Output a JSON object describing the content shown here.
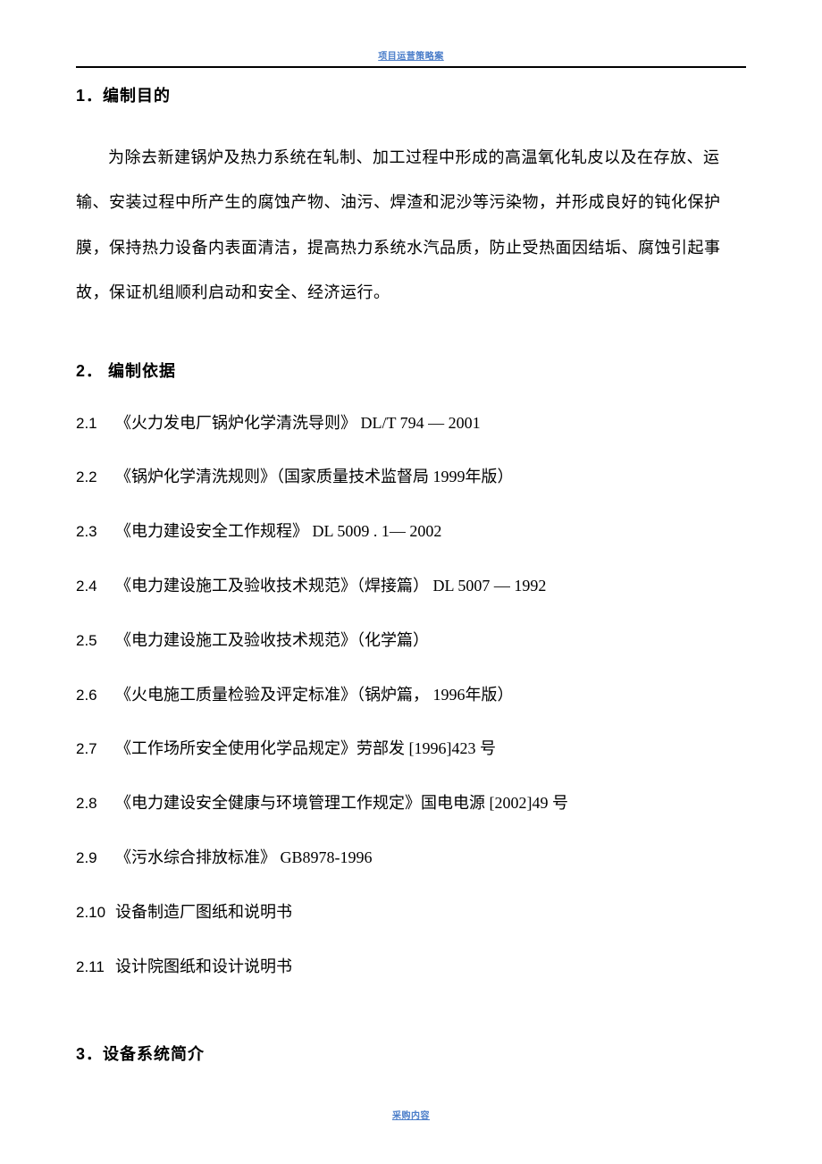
{
  "header": {
    "watermark_top": "项目运营策略案",
    "watermark_bottom": "采购内容"
  },
  "section1": {
    "heading": "1．编制目的",
    "paragraph": "为除去新建锅炉及热力系统在轧制、加工过程中形成的高温氧化轧皮以及在存放、运输、安装过程中所产生的腐蚀产物、油污、焊渣和泥沙等污染物，并形成良好的钝化保护膜，保持热力设备内表面清洁，提高热力系统水汽品质，防止受热面因结垢、腐蚀引起事故，保证机组顺利启动和安全、经济运行。"
  },
  "section2": {
    "heading": "2． 编制依据",
    "items": [
      {
        "num": "2.1",
        "text": "《火力发电厂锅炉化学清洗导则》 DL/T  794 — 2001"
      },
      {
        "num": "2.2",
        "text": "《锅炉化学清洗规则》（国家质量技术监督局  1999年版）"
      },
      {
        "num": "2.3",
        "text": "《电力建设安全工作规程》 DL  5009 . 1— 2002"
      },
      {
        "num": "2.4",
        "text": "《电力建设施工及验收技术规范》（焊接篇）  DL  5007 — 1992"
      },
      {
        "num": "2.5",
        "text": "《电力建设施工及验收技术规范》（化学篇）"
      },
      {
        "num": "2.6",
        "text": "《火电施工质量检验及评定标准》（锅炉篇，  1996年版）"
      },
      {
        "num": "2.7",
        "text": "《工作场所安全使用化学品规定》劳部发 [1996]423 号"
      },
      {
        "num": "2.8",
        "text": "《电力建设安全健康与环境管理工作规定》国电电源 [2002]49 号"
      },
      {
        "num": "2.9",
        "text": "《污水综合排放标准》 GB8978-1996"
      },
      {
        "num": "2.10",
        "text": "设备制造厂图纸和说明书"
      },
      {
        "num": "2.11",
        "text": "设计院图纸和设计说明书"
      }
    ]
  },
  "section3": {
    "heading": "3．设备系统简介"
  },
  "style": {
    "page_bg": "#ffffff",
    "text_color": "#000000",
    "watermark_color": "#4a7dc9",
    "rule_color": "#000000",
    "body_fontsize": 18,
    "heading_fontsize": 18,
    "watermark_fontsize": 10,
    "line_height": 2.8
  }
}
